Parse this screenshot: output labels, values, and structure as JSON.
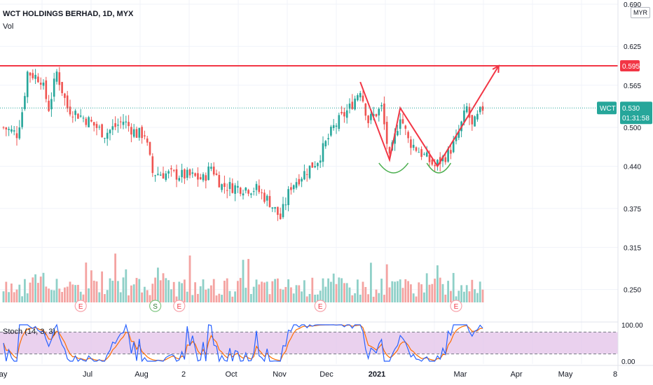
{
  "header": {
    "title": "WCT HOLDINGS BERHAD, 1D, MYX",
    "volume_label": "Vol"
  },
  "currency": "MYR",
  "colors": {
    "up": "#26a69a",
    "down": "#ef5350",
    "volUp": "#8fd0c8",
    "volDown": "#f4a3a1",
    "drawing": "#f23645",
    "cup": "#4caf50",
    "grid": "#f0f3fa",
    "stochK": "#2962ff",
    "stochD": "#ff6d00",
    "stochFill": "#e1bee7"
  },
  "chart_data": {
    "type": "candlestick",
    "symbol": "WCT",
    "interval": "1D",
    "exchange": "MYX",
    "x_tick_labels": [
      "May",
      "Jul",
      "Aug",
      "2",
      "Oct",
      "Nov",
      "Dec",
      "2021",
      "Mar",
      "Apr",
      "May",
      "8"
    ],
    "price_axis": {
      "ticks": [
        "0.690",
        "0.625",
        "0.565",
        "0.500",
        "0.440",
        "0.375",
        "0.315",
        "0.250"
      ],
      "range": [
        0.215,
        0.69
      ]
    },
    "price_anchors": [
      {
        "bar": 0,
        "price": 0.5
      },
      {
        "bar": 5,
        "price": 0.49
      },
      {
        "bar": 7,
        "price": 0.525
      },
      {
        "bar": 9,
        "price": 0.585
      },
      {
        "bar": 14,
        "price": 0.575
      },
      {
        "bar": 17,
        "price": 0.53
      },
      {
        "bar": 20,
        "price": 0.585
      },
      {
        "bar": 24,
        "price": 0.53
      },
      {
        "bar": 32,
        "price": 0.51
      },
      {
        "bar": 38,
        "price": 0.49
      },
      {
        "bar": 45,
        "price": 0.51
      },
      {
        "bar": 50,
        "price": 0.49
      },
      {
        "bar": 53,
        "price": 0.49
      },
      {
        "bar": 56,
        "price": 0.43
      },
      {
        "bar": 70,
        "price": 0.425
      },
      {
        "bar": 75,
        "price": 0.42
      },
      {
        "bar": 78,
        "price": 0.44
      },
      {
        "bar": 82,
        "price": 0.41
      },
      {
        "bar": 95,
        "price": 0.405
      },
      {
        "bar": 100,
        "price": 0.385
      },
      {
        "bar": 104,
        "price": 0.36
      },
      {
        "bar": 108,
        "price": 0.41
      },
      {
        "bar": 113,
        "price": 0.43
      },
      {
        "bar": 118,
        "price": 0.45
      },
      {
        "bar": 124,
        "price": 0.5
      },
      {
        "bar": 130,
        "price": 0.53
      },
      {
        "bar": 134,
        "price": 0.56
      },
      {
        "bar": 137,
        "price": 0.51
      },
      {
        "bar": 142,
        "price": 0.53
      },
      {
        "bar": 145,
        "price": 0.45
      },
      {
        "bar": 149,
        "price": 0.52
      },
      {
        "bar": 152,
        "price": 0.48
      },
      {
        "bar": 157,
        "price": 0.46
      },
      {
        "bar": 162,
        "price": 0.44
      },
      {
        "bar": 167,
        "price": 0.46
      },
      {
        "bar": 170,
        "price": 0.48
      },
      {
        "bar": 174,
        "price": 0.53
      },
      {
        "bar": 176,
        "price": 0.5
      },
      {
        "bar": 180,
        "price": 0.53
      }
    ],
    "last_price": {
      "symbol": "WCT",
      "price": "0.530",
      "countdown": "01:31:58"
    },
    "drawings": {
      "resistance": {
        "price": 0.595,
        "label": "0.595"
      },
      "w_pattern": [
        [
          134,
          0.57
        ],
        [
          145,
          0.45
        ],
        [
          149,
          0.53
        ],
        [
          163,
          0.44
        ],
        [
          186,
          0.595
        ]
      ],
      "cups": [
        [
          141,
          152
        ],
        [
          159,
          168
        ]
      ]
    },
    "earnings_markers": {
      "label": "E",
      "bars": [
        29,
        66,
        119,
        170
      ]
    },
    "split_markers": {
      "label": "S",
      "bars": [
        57
      ]
    },
    "volume": {
      "ticks": [
        "0.315",
        "0.250"
      ]
    },
    "stochastic": {
      "label": "Stoch (14, 3, 3)",
      "ticks": [
        "100.00",
        "0.00"
      ],
      "upper_band": 80,
      "lower_band": 20,
      "range": [
        0,
        100
      ]
    }
  }
}
